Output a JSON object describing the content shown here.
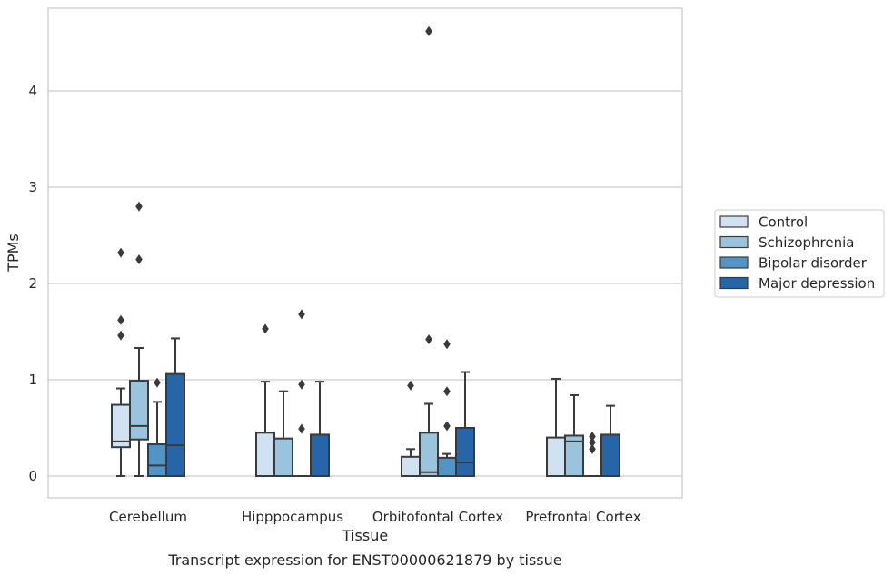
{
  "chart_data": {
    "type": "box",
    "title": "Transcript expression for ENST00000621879 by tissue",
    "xlabel": "Tissue",
    "ylabel": "TPMs",
    "ylim": [
      -0.22,
      4.9
    ],
    "yticks": [
      "0",
      "1",
      "2",
      "3",
      "4"
    ],
    "grid": true,
    "legend_position": "right",
    "categories": [
      "Cerebellum",
      "Hipppocampus",
      "Orbitofontal Cortex",
      "Prefrontal Cortex"
    ],
    "series": [
      {
        "name": "Control",
        "color": "#d0e1f2",
        "boxes": [
          {
            "whislo": 0,
            "q1": 0.3,
            "med": 0.36,
            "q3": 0.74,
            "whishi": 0.91,
            "fliers": [
              1.46,
              1.62,
              2.32
            ]
          },
          {
            "whislo": 0,
            "q1": 0,
            "med": 0,
            "q3": 0.45,
            "whishi": 0.98,
            "fliers": [
              1.53
            ]
          },
          {
            "whislo": 0,
            "q1": 0,
            "med": 0,
            "q3": 0.2,
            "whishi": 0.28,
            "fliers": [
              0.94
            ]
          },
          {
            "whislo": 0,
            "q1": 0,
            "med": 0,
            "q3": 0.4,
            "whishi": 1.01,
            "fliers": []
          }
        ]
      },
      {
        "name": "Schizophrenia",
        "color": "#9ac3dd",
        "boxes": [
          {
            "whislo": 0,
            "q1": 0.38,
            "med": 0.52,
            "q3": 0.99,
            "whishi": 1.33,
            "fliers": [
              2.25,
              2.8
            ]
          },
          {
            "whislo": 0,
            "q1": 0,
            "med": 0,
            "q3": 0.39,
            "whishi": 0.88,
            "fliers": []
          },
          {
            "whislo": 0,
            "q1": 0,
            "med": 0.04,
            "q3": 0.45,
            "whishi": 0.75,
            "fliers": [
              1.42,
              4.62
            ]
          },
          {
            "whislo": 0,
            "q1": 0,
            "med": 0.36,
            "q3": 0.42,
            "whishi": 0.84,
            "fliers": []
          }
        ]
      },
      {
        "name": "Bipolar disorder",
        "color": "#5294c6",
        "boxes": [
          {
            "whislo": 0,
            "q1": 0,
            "med": 0.11,
            "q3": 0.33,
            "whishi": 0.77,
            "fliers": [
              0.97
            ]
          },
          {
            "whislo": 0,
            "q1": 0,
            "med": 0,
            "q3": 0,
            "whishi": 0,
            "fliers": [
              0.49,
              0.95,
              1.68
            ]
          },
          {
            "whislo": 0,
            "q1": 0,
            "med": 0,
            "q3": 0.19,
            "whishi": 0.23,
            "fliers": [
              0.52,
              0.88,
              1.37
            ]
          },
          {
            "whislo": 0,
            "q1": 0,
            "med": 0,
            "q3": 0,
            "whishi": 0,
            "fliers": [
              0.28,
              0.35,
              0.41
            ]
          }
        ]
      },
      {
        "name": "Major depression",
        "color": "#2565a8",
        "boxes": [
          {
            "whislo": 0,
            "q1": 0,
            "med": 0.32,
            "q3": 1.06,
            "whishi": 1.43,
            "fliers": []
          },
          {
            "whislo": 0,
            "q1": 0,
            "med": 0,
            "q3": 0.43,
            "whishi": 0.98,
            "fliers": []
          },
          {
            "whislo": 0,
            "q1": 0,
            "med": 0.14,
            "q3": 0.5,
            "whishi": 1.08,
            "fliers": []
          },
          {
            "whislo": 0,
            "q1": 0,
            "med": 0,
            "q3": 0.43,
            "whishi": 0.73,
            "fliers": []
          }
        ]
      }
    ]
  }
}
